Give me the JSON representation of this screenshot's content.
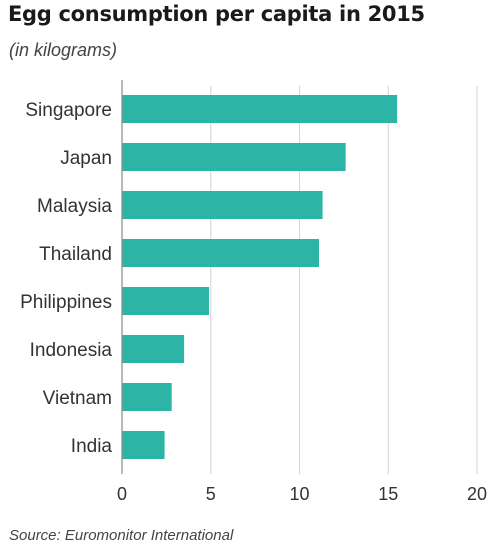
{
  "header": {
    "title": "Egg consumption per capita in 2015",
    "subtitle": "(in kilograms)"
  },
  "footer": {
    "source": "Source: Euromonitor International"
  },
  "colors": {
    "bar": "#2cb5a6",
    "grid": "#d4d4d4",
    "axis": "#8a8a8a"
  },
  "chart_data": {
    "type": "bar",
    "orientation": "horizontal",
    "title": "Egg consumption per capita in 2015",
    "subtitle": "(in kilograms)",
    "categories": [
      "Singapore",
      "Japan",
      "Malaysia",
      "Thailand",
      "Philippines",
      "Indonesia",
      "Vietnam",
      "India"
    ],
    "values": [
      15.5,
      12.6,
      11.3,
      11.1,
      4.9,
      3.5,
      2.8,
      2.4
    ],
    "xlim": [
      0,
      20
    ],
    "xticks": [
      0,
      5,
      10,
      15,
      20
    ],
    "xlabel": "",
    "ylabel": "",
    "grid": "vertical",
    "legend": "none"
  }
}
